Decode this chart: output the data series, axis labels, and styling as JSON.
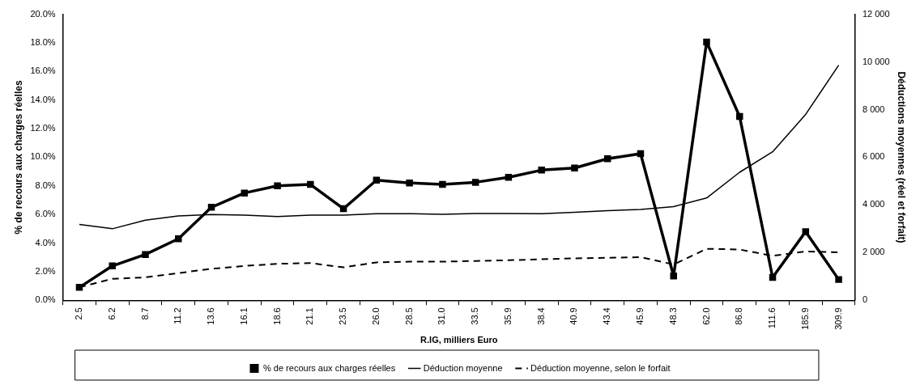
{
  "chart_data": {
    "type": "line",
    "xlabel": "R.IG, milliers Euro",
    "ylabel": "% de recours aux charges réelles",
    "y2label": "Déductions moyennes (réel et forfait)",
    "categories": [
      "2.5",
      "6.2",
      "8.7",
      "11.2",
      "13.6",
      "16.1",
      "18.6",
      "21.1",
      "23.5",
      "26.0",
      "28.5",
      "31.0",
      "33.5",
      "35.9",
      "38.4",
      "40.9",
      "43.4",
      "45.9",
      "48.3",
      "62.0",
      "86.8",
      "111.6",
      "185.9",
      "309.9"
    ],
    "series": [
      {
        "name": "% de recours aux charges réelles",
        "color": "#000000",
        "marker": "square",
        "line_style": "solid",
        "values": [
          0.9,
          2.4,
          3.2,
          4.3,
          6.5,
          7.5,
          8.0,
          8.1,
          6.4,
          8.4,
          8.2,
          8.1,
          8.25,
          8.6,
          9.1,
          9.25,
          9.9,
          10.25,
          1.7,
          18.05,
          12.85,
          1.6,
          4.8,
          1.45
        ]
      },
      {
        "name": "Déduction moyenne",
        "color": "#000000",
        "marker": "none",
        "line_style": "solid",
        "axis": "y2",
        "values": [
          3180,
          3000,
          3360,
          3540,
          3600,
          3570,
          3510,
          3570,
          3570,
          3630,
          3630,
          3610,
          3640,
          3640,
          3630,
          3690,
          3760,
          3810,
          3930,
          4290,
          5370,
          6230,
          7800,
          9860
        ]
      },
      {
        "name": "Déduction moyenne, selon le forfait",
        "color": "#000000",
        "marker": "none",
        "line_style": "dashed",
        "axis": "y2",
        "values": [
          540,
          900,
          960,
          1140,
          1320,
          1440,
          1530,
          1560,
          1380,
          1590,
          1620,
          1620,
          1650,
          1680,
          1720,
          1760,
          1780,
          1810,
          1500,
          2160,
          2130,
          1860,
          2050,
          2010
        ]
      }
    ],
    "ylim": [
      0,
      20
    ],
    "yticks": [
      {
        "value": 0,
        "label": "0.0%"
      },
      {
        "value": 2,
        "label": "2.0%"
      },
      {
        "value": 4,
        "label": "4.0%"
      },
      {
        "value": 6,
        "label": "6.0%"
      },
      {
        "value": 8,
        "label": "8.0%"
      },
      {
        "value": 10,
        "label": "10.0%"
      },
      {
        "value": 12,
        "label": "12.0%"
      },
      {
        "value": 14,
        "label": "14.0%"
      },
      {
        "value": 16,
        "label": "16.0%"
      },
      {
        "value": 18,
        "label": "18.0%"
      },
      {
        "value": 20,
        "label": "20.0%"
      }
    ],
    "y2lim": [
      0,
      12000
    ],
    "y2ticks": [
      0,
      {
        "value": 2000,
        "label": "2 000"
      },
      {
        "value": 4000,
        "label": "4 000"
      },
      {
        "value": 6000,
        "label": "6 000"
      },
      {
        "value": 8000,
        "label": "8 000"
      },
      {
        "value": 10000,
        "label": "10 000"
      },
      {
        "value": 12000,
        "label": "12 000"
      }
    ],
    "grid": false,
    "legend": "bottom"
  }
}
